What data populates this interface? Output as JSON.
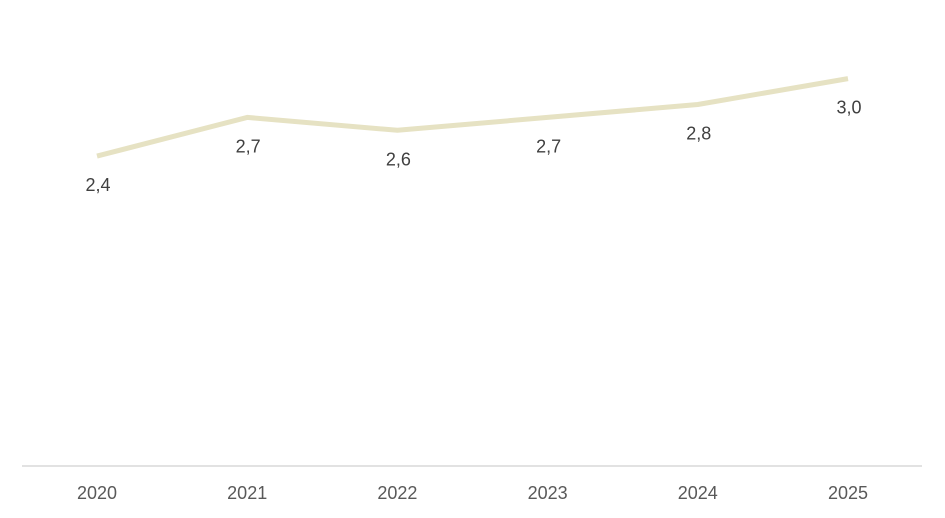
{
  "chart_data": {
    "type": "line",
    "categories": [
      "2020",
      "2021",
      "2022",
      "2023",
      "2024",
      "2025"
    ],
    "series": [
      {
        "values": [
          2.4,
          2.7,
          2.6,
          2.7,
          2.8,
          3.0
        ],
        "data_labels": [
          "2,4",
          "2,7",
          "2,6",
          "2,7",
          "2,8",
          "3,0"
        ],
        "color": "#e6e2c3"
      }
    ],
    "title": "",
    "xlabel": "",
    "ylabel": "",
    "ylim": [
      0,
      3.4
    ],
    "grid": false,
    "legend": "none",
    "axis_color": "#d9d9d9",
    "label_color": "#404040",
    "tick_color": "#595959"
  }
}
